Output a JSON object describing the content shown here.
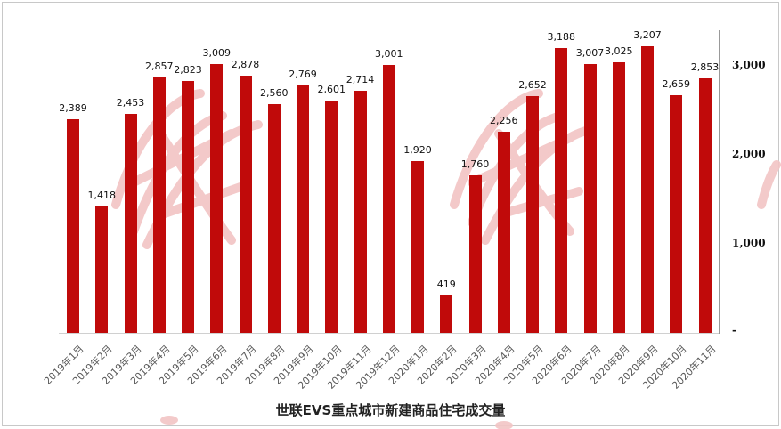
{
  "chart_data": {
    "type": "bar",
    "title": "世联EVS重点城市新建商品住宅成交量",
    "xlabel": "",
    "ylabel": "",
    "ylim": [
      0,
      3400
    ],
    "y_ticks": [
      "-",
      "1,000",
      "2,000",
      "3,000"
    ],
    "y_axis_position": "right",
    "grid": false,
    "legend": null,
    "bar_color": "#c00a0a",
    "categories": [
      "2019年1月",
      "2019年2月",
      "2019年3月",
      "2019年4月",
      "2019年5月",
      "2019年6月",
      "2019年7月",
      "2019年8月",
      "2019年9月",
      "2019年10月",
      "2019年11月",
      "2019年12月",
      "2020年1月",
      "2020年2月",
      "2020年3月",
      "2020年4月",
      "2020年5月",
      "2020年6月",
      "2020年7月",
      "2020年8月",
      "2020年9月",
      "2020年10月",
      "2020年11月"
    ],
    "values": [
      2389,
      1418,
      2453,
      2857,
      2823,
      3009,
      2878,
      2560,
      2769,
      2601,
      2714,
      3001,
      1920,
      419,
      1760,
      2256,
      2652,
      3188,
      3007,
      3025,
      3207,
      2659,
      2853
    ],
    "value_labels": [
      "2,389",
      "1,418",
      "2,453",
      "2,857",
      "2,823",
      "3,009",
      "2,878",
      "2,560",
      "2,769",
      "2,601",
      "2,714",
      "3,001",
      "1,920",
      "419",
      "1,760",
      "2,256",
      "2,652",
      "3,188",
      "3,007",
      "3,025",
      "3,207",
      "2,659",
      "2,853"
    ]
  },
  "title": "世联EVS重点城市新建商品住宅成交量",
  "y_ticks": [
    {
      "label": "3,000",
      "value": 3000
    },
    {
      "label": "2,000",
      "value": 2000
    },
    {
      "label": "1,000",
      "value": 1000
    },
    {
      "label": "-",
      "value": 0
    }
  ]
}
